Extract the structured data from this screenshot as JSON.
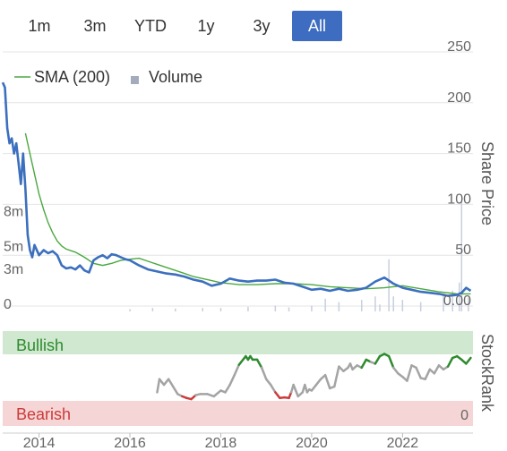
{
  "range_buttons": [
    "1m",
    "3m",
    "YTD",
    "1y",
    "3y",
    "All"
  ],
  "active_range": "All",
  "colors": {
    "price": "#3c6fbe",
    "sma": "#4aa840",
    "volume": "#c7cede",
    "stockrank_neutral": "#a4a4a4",
    "stockrank_bullish": "#2f8a2f",
    "stockrank_bearish": "#cc3b3b",
    "bullish_band": "#cfe8cf",
    "bearish_band": "#f5d5d5",
    "grid": "#e4e4e4",
    "axis_text": "#666666"
  },
  "legend": {
    "sma_label": "SMA (200)",
    "volume_label": "Volume"
  },
  "stockrank": {
    "axis_title": "StockRank",
    "bullish_label": "Bullish",
    "bearish_label": "Bearish",
    "zero_label": "0"
  },
  "chart_data": [
    {
      "type": "line",
      "ylabel": "Share Price",
      "ylim": [
        0,
        250
      ],
      "yticks": [
        0,
        50,
        100,
        150,
        200,
        250
      ],
      "ytick_labels": [
        "0.00",
        "50",
        "100",
        "150",
        "200",
        "250"
      ],
      "xlim": [
        2013.2,
        2023.55
      ],
      "xticks": [
        2014,
        2016,
        2018,
        2020,
        2022
      ],
      "xtick_labels": [
        "2014",
        "2016",
        "2018",
        "2020",
        "2022"
      ],
      "volume_ylim": [
        0,
        13
      ],
      "volume_ticks": [
        0,
        3,
        5,
        8
      ],
      "volume_tick_labels": [
        "0",
        "3m",
        "5m",
        "8m"
      ],
      "grid": true,
      "legend_position": "top-left",
      "series": [
        {
          "name": "Share Price",
          "color": "#3c6fbe",
          "x": [
            2013.2,
            2013.25,
            2013.3,
            2013.35,
            2013.4,
            2013.45,
            2013.5,
            2013.55,
            2013.6,
            2013.65,
            2013.7,
            2013.75,
            2013.8,
            2013.85,
            2013.9,
            2014.0,
            2014.1,
            2014.2,
            2014.3,
            2014.4,
            2014.5,
            2014.6,
            2014.7,
            2014.8,
            2014.9,
            2015.0,
            2015.1,
            2015.2,
            2015.3,
            2015.4,
            2015.5,
            2015.6,
            2015.7,
            2015.8,
            2015.9,
            2016.0,
            2016.2,
            2016.4,
            2016.6,
            2016.8,
            2017.0,
            2017.2,
            2017.4,
            2017.6,
            2017.8,
            2018.0,
            2018.2,
            2018.4,
            2018.6,
            2018.8,
            2019.0,
            2019.2,
            2019.4,
            2019.6,
            2019.8,
            2020.0,
            2020.2,
            2020.4,
            2020.6,
            2020.8,
            2021.0,
            2021.2,
            2021.4,
            2021.6,
            2021.8,
            2022.0,
            2022.2,
            2022.4,
            2022.6,
            2022.8,
            2023.0,
            2023.2,
            2023.3,
            2023.4,
            2023.5
          ],
          "values": [
            220,
            215,
            175,
            160,
            165,
            150,
            160,
            140,
            120,
            150,
            115,
            70,
            55,
            48,
            60,
            50,
            55,
            52,
            54,
            50,
            40,
            37,
            38,
            36,
            40,
            35,
            33,
            45,
            48,
            50,
            47,
            51,
            50,
            48,
            46,
            45,
            40,
            36,
            34,
            32,
            31,
            29,
            26,
            24,
            20,
            22,
            27,
            25,
            24,
            25,
            25,
            26,
            23,
            22,
            19,
            16,
            17,
            15,
            17,
            15,
            16,
            18,
            24,
            28,
            22,
            18,
            16,
            14,
            13,
            12,
            10,
            11,
            13,
            18,
            15
          ]
        },
        {
          "name": "SMA (200)",
          "color": "#4aa840",
          "x": [
            2013.7,
            2013.8,
            2013.9,
            2014.0,
            2014.1,
            2014.2,
            2014.3,
            2014.4,
            2014.5,
            2014.6,
            2014.8,
            2015.0,
            2015.2,
            2015.4,
            2015.6,
            2015.8,
            2016.0,
            2016.2,
            2016.4,
            2016.6,
            2016.8,
            2017.0,
            2017.2,
            2017.4,
            2017.6,
            2017.8,
            2018.0,
            2018.4,
            2018.8,
            2019.2,
            2019.6,
            2020.0,
            2020.4,
            2020.8,
            2021.2,
            2021.6,
            2022.0,
            2022.4,
            2022.8,
            2023.2,
            2023.5
          ],
          "values": [
            170,
            150,
            130,
            110,
            95,
            82,
            72,
            64,
            59,
            56,
            53,
            48,
            42,
            40,
            42,
            45,
            46,
            47,
            44,
            41,
            38,
            35,
            32,
            29,
            27,
            25,
            23,
            21,
            21,
            22,
            22,
            21,
            19,
            18,
            17,
            18,
            20,
            17,
            14,
            12,
            12
          ]
        }
      ],
      "volume": {
        "name": "Volume",
        "x": [
          2016.0,
          2016.5,
          2017.0,
          2017.6,
          2018.0,
          2018.6,
          2019.2,
          2019.5,
          2020.0,
          2020.3,
          2020.6,
          2021.1,
          2021.4,
          2021.5,
          2021.7,
          2021.8,
          2022.0,
          2022.4,
          2022.9,
          2023.1,
          2023.25,
          2023.3,
          2023.45
        ],
        "values": [
          0.2,
          0.3,
          0.25,
          0.3,
          0.3,
          0.4,
          0.5,
          0.35,
          0.5,
          1.1,
          0.8,
          1.0,
          1.3,
          0.6,
          4.5,
          1.3,
          1.0,
          0.8,
          1.5,
          1.8,
          2.5,
          9.5,
          1.2
        ]
      }
    },
    {
      "type": "line",
      "ylabel": "StockRank",
      "ylim": [
        0,
        100
      ],
      "series": [
        {
          "name": "StockRank",
          "color": "#a4a4a4",
          "x": [
            2016.6,
            2016.65,
            2016.75,
            2016.85,
            2016.95,
            2017.05,
            2017.15,
            2017.25,
            2017.35,
            2017.45,
            2017.55,
            2017.7,
            2017.85,
            2018.0,
            2018.1,
            2018.2,
            2018.3,
            2018.4,
            2018.5,
            2018.55,
            2018.6,
            2018.65,
            2018.7,
            2018.8,
            2018.9,
            2019.0,
            2019.1,
            2019.2,
            2019.3,
            2019.4,
            2019.5,
            2019.55,
            2019.6,
            2019.65,
            2019.7,
            2019.8,
            2019.85,
            2019.9,
            2019.95,
            2020.0,
            2020.1,
            2020.2,
            2020.3,
            2020.4,
            2020.5,
            2020.6,
            2020.7,
            2020.8,
            2020.85,
            2020.9,
            2021.0,
            2021.1,
            2021.2,
            2021.3,
            2021.4,
            2021.5,
            2021.6,
            2021.7,
            2021.8,
            2021.9,
            2022.0,
            2022.1,
            2022.2,
            2022.3,
            2022.4,
            2022.5,
            2022.6,
            2022.7,
            2022.8,
            2022.9,
            2023.0,
            2023.1,
            2023.2,
            2023.3,
            2023.4,
            2023.5
          ],
          "values": [
            15,
            38,
            28,
            38,
            25,
            12,
            8,
            5,
            3,
            10,
            12,
            12,
            8,
            18,
            15,
            28,
            45,
            63,
            73,
            78,
            72,
            78,
            72,
            72,
            58,
            38,
            28,
            15,
            5,
            6,
            5,
            15,
            28,
            18,
            8,
            15,
            28,
            15,
            20,
            18,
            28,
            38,
            45,
            22,
            25,
            60,
            52,
            58,
            65,
            55,
            62,
            58,
            72,
            68,
            65,
            78,
            82,
            78,
            58,
            48,
            42,
            35,
            62,
            58,
            40,
            38,
            55,
            48,
            62,
            55,
            60,
            75,
            78,
            72,
            65,
            75
          ]
        }
      ]
    }
  ]
}
